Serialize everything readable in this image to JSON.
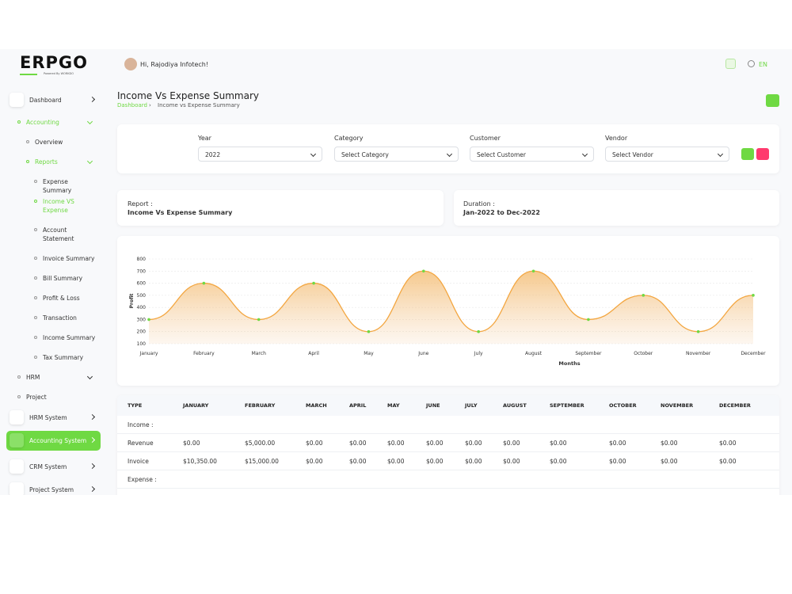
{
  "sidebar": {
    "logo": "ERPGO",
    "tagline": "Powered By WORKDO",
    "menu": [
      "Dashboard",
      "Accounting",
      "Overview",
      "Reports",
      "Expense Summary",
      "Income VS Expense",
      "Account Statement",
      "Invoice Summary",
      "Bill Summary",
      "Profit & Loss",
      "Transaction",
      "Income Summary",
      "Tax Summary",
      "HRM",
      "Project",
      "HRM System",
      "Accounting System",
      "CRM System",
      "Project System"
    ]
  },
  "header": {
    "greeting": "Hi, Rajodiya Infotech!",
    "language": "EN"
  },
  "page": {
    "title": "Income Vs Expense Summary",
    "breadcrumb": [
      "Dashboard",
      "Income vs Expense Summary"
    ]
  },
  "filters": [
    {
      "label": "Year",
      "value": "2022"
    },
    {
      "label": "Category",
      "value": "Select Category"
    },
    {
      "label": "Customer",
      "value": "Select Customer"
    },
    {
      "label": "Vendor",
      "value": "Select Vendor"
    }
  ],
  "report_info": [
    {
      "label": "Report :",
      "value": "Income Vs Expense Summary"
    },
    {
      "label": "Duration :",
      "value": "Jan-2022 to Dec-2022"
    }
  ],
  "chart_data": {
    "type": "line",
    "x_label": "Months",
    "y_label": "Profit",
    "categories": [
      "January",
      "February",
      "March",
      "April",
      "May",
      "June",
      "July",
      "August",
      "September",
      "October",
      "November",
      "December"
    ],
    "values": [
      300,
      600,
      300,
      600,
      200,
      700,
      200,
      700,
      300,
      500,
      200,
      500
    ],
    "color": "#f3a640",
    "point_color": "#6fd943",
    "area": true,
    "grid": true,
    "ylim": [
      100,
      800
    ],
    "yticks": [
      100,
      200,
      300,
      400,
      500,
      600,
      700,
      800
    ]
  },
  "table": {
    "headers": [
      "TYPE",
      "JANUARY",
      "FEBRUARY",
      "MARCH",
      "APRIL",
      "MAY",
      "JUNE",
      "JULY",
      "AUGUST",
      "SEPTEMBER",
      "OCTOBER",
      "NOVEMBER",
      "DECEMBER"
    ],
    "rows": [
      [
        "Income :"
      ],
      [
        "Revenue",
        "$0.00",
        "$5,000.00",
        "$0.00",
        "$0.00",
        "$0.00",
        "$0.00",
        "$0.00",
        "$0.00",
        "$0.00",
        "$0.00",
        "$0.00",
        "$0.00"
      ],
      [
        "Invoice",
        "$10,350.00",
        "$15,000.00",
        "$0.00",
        "$0.00",
        "$0.00",
        "$0.00",
        "$0.00",
        "$0.00",
        "$0.00",
        "$0.00",
        "$0.00",
        "$0.00"
      ],
      [
        "Expense :"
      ]
    ]
  }
}
